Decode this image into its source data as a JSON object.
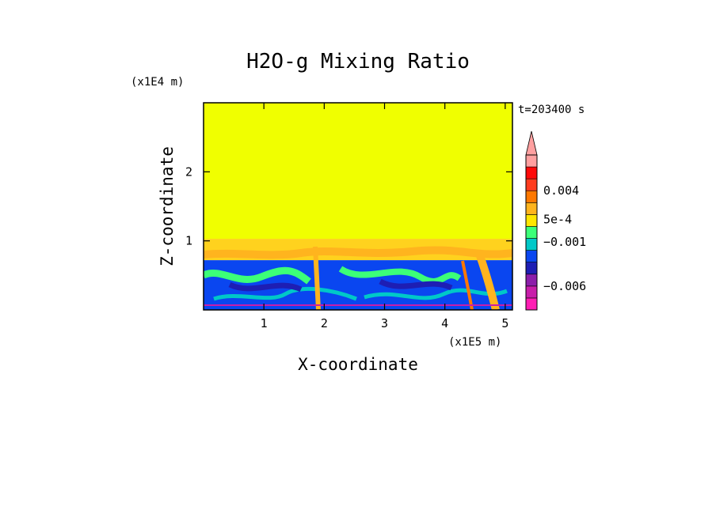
{
  "chart_data": {
    "type": "heatmap",
    "title": "H2O-g Mixing Ratio",
    "xlabel": "X-coordinate",
    "ylabel": "Z-coordinate",
    "x_scale_note": "(x1E5 m)",
    "y_scale_note": "(x1E4 m)",
    "time_label": "t=203400 s",
    "xlim": [
      0,
      5.12
    ],
    "ylim": [
      0,
      3.0
    ],
    "x_ticks": [
      {
        "value": 1,
        "label": "1"
      },
      {
        "value": 2,
        "label": "2"
      },
      {
        "value": 3,
        "label": "3"
      },
      {
        "value": 4,
        "label": "4"
      },
      {
        "value": 5,
        "label": "5"
      }
    ],
    "y_ticks": [
      {
        "value": 1,
        "label": "1"
      },
      {
        "value": 2,
        "label": "2"
      }
    ],
    "layers": [
      {
        "name": "upper",
        "z_from": 1.03,
        "z_to": 3.0,
        "color": "#f0ff00"
      },
      {
        "name": "transition",
        "z_from": 0.72,
        "z_to": 1.03,
        "color": "#ffd21e"
      },
      {
        "name": "lower-mixed",
        "z_from": 0.0,
        "z_to": 0.72,
        "color": "#0a46f0"
      }
    ],
    "colorbar": {
      "colors": [
        "#ff1eb4",
        "#c81eaa",
        "#8c1eaa",
        "#1e1eb4",
        "#0a46f0",
        "#00c8c8",
        "#3cff78",
        "#ffe600",
        "#ffb41e",
        "#ff7800",
        "#ff3c1e",
        "#ff0a0a",
        "#ffa0a0"
      ],
      "levels": [
        "",
        "",
        "",
        "",
        "",
        "",
        "",
        "",
        "",
        "",
        "",
        "",
        ""
      ],
      "labels": [
        {
          "text": "0.004",
          "at_band": 10
        },
        {
          "text": "5e-4",
          "at_band": 7.6
        },
        {
          "text": "−0.001",
          "at_band": 5.7
        },
        {
          "text": "−0.006",
          "at_band": 2.0
        }
      ]
    }
  }
}
